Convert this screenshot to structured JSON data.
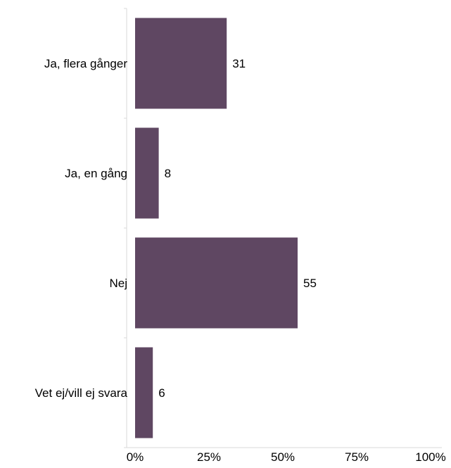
{
  "chart_data": {
    "type": "bar",
    "orientation": "horizontal",
    "categories": [
      "Ja, flera gånger",
      "Ja, en gång",
      "Nej",
      "Vet ej/vill ej svara"
    ],
    "values": [
      31,
      8,
      55,
      6
    ],
    "value_labels": [
      "31",
      "8",
      "55",
      "6"
    ],
    "xlim": [
      0,
      100
    ],
    "x_ticks": [
      0,
      25,
      50,
      75,
      100
    ],
    "x_tick_labels": [
      "0%",
      "25%",
      "50%",
      "75%",
      "100%"
    ],
    "grid": false,
    "legend": "none",
    "bar_color": "#5f4762"
  }
}
